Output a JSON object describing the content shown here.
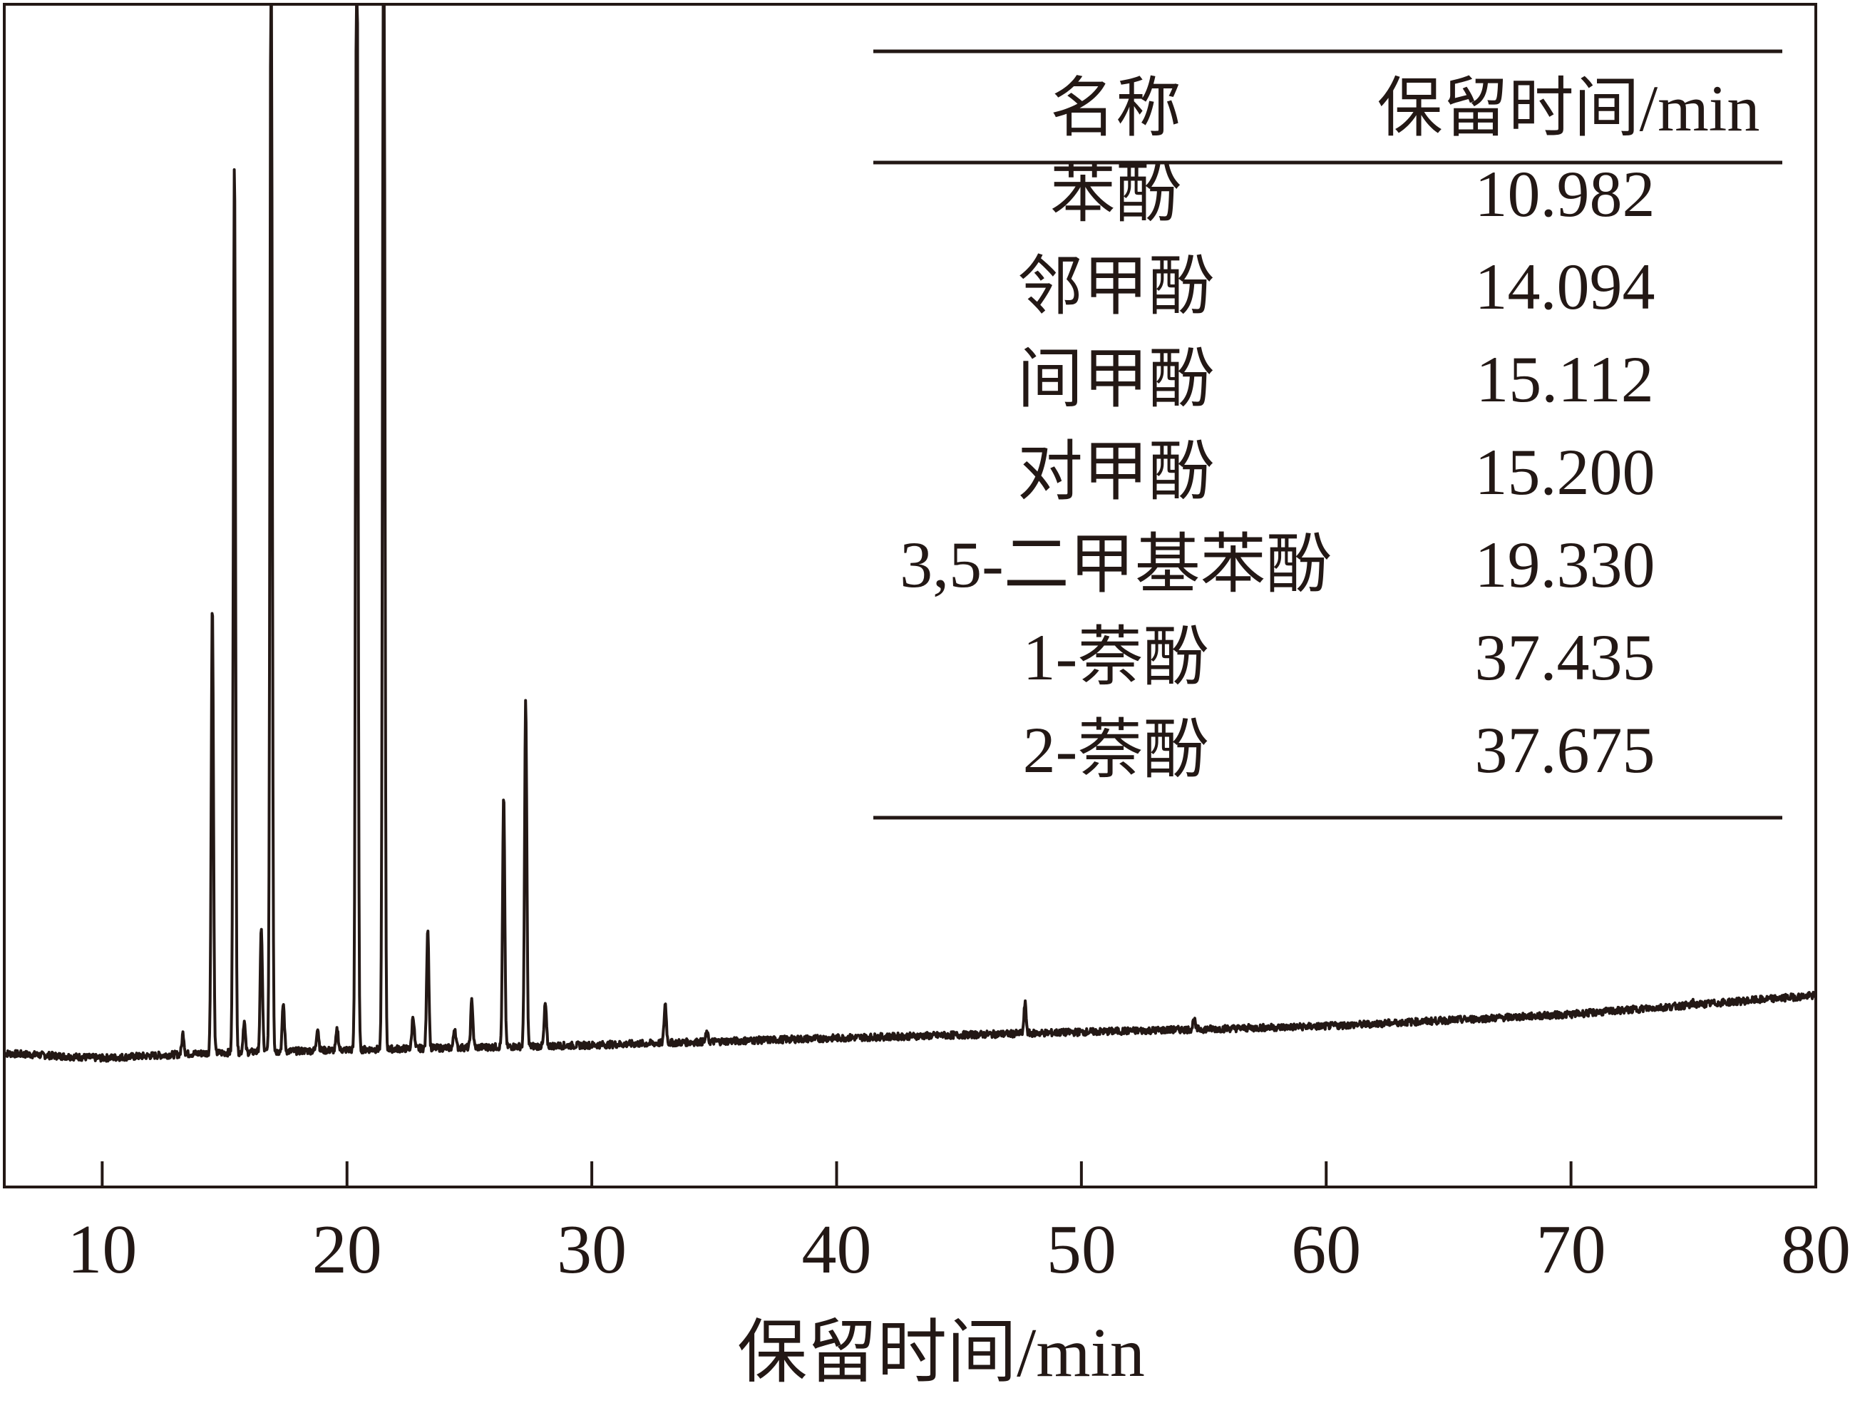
{
  "chart_data": {
    "type": "line",
    "xlabel": "保留时间/min",
    "ylabel": "",
    "xlim": [
      6,
      80
    ],
    "ylim": [
      0,
      100
    ],
    "grid": false,
    "x_ticks": [
      10,
      20,
      30,
      40,
      50,
      60,
      70,
      80
    ],
    "x_tick_labels": [
      "10",
      "20",
      "30",
      "40",
      "50",
      "60",
      "70",
      "80"
    ],
    "baseline": [
      {
        "x": 6,
        "y": 11.3
      },
      {
        "x": 10,
        "y": 10.9
      },
      {
        "x": 14,
        "y": 11.3
      },
      {
        "x": 20,
        "y": 11.6
      },
      {
        "x": 30,
        "y": 12.0
      },
      {
        "x": 40,
        "y": 12.6
      },
      {
        "x": 50,
        "y": 13.1
      },
      {
        "x": 60,
        "y": 13.6
      },
      {
        "x": 70,
        "y": 14.6
      },
      {
        "x": 80,
        "y": 16.2
      }
    ],
    "peaks": [
      {
        "x": 13.3,
        "y": 13.0
      },
      {
        "x": 14.5,
        "y": 49.5
      },
      {
        "x": 15.4,
        "y": 87.0
      },
      {
        "x": 15.8,
        "y": 14.0
      },
      {
        "x": 16.5,
        "y": 22.0
      },
      {
        "x": 16.9,
        "y": 110.0
      },
      {
        "x": 17.4,
        "y": 15.5
      },
      {
        "x": 18.8,
        "y": 13.5
      },
      {
        "x": 19.6,
        "y": 13.3
      },
      {
        "x": 20.4,
        "y": 120.0
      },
      {
        "x": 21.5,
        "y": 120.0
      },
      {
        "x": 22.7,
        "y": 14.5
      },
      {
        "x": 23.3,
        "y": 22.0
      },
      {
        "x": 24.4,
        "y": 13.5
      },
      {
        "x": 25.1,
        "y": 15.8
      },
      {
        "x": 26.4,
        "y": 33.0
      },
      {
        "x": 27.3,
        "y": 41.0
      },
      {
        "x": 28.1,
        "y": 15.5
      },
      {
        "x": 33.0,
        "y": 15.5
      },
      {
        "x": 34.7,
        "y": 13.0
      },
      {
        "x": 47.7,
        "y": 15.5
      },
      {
        "x": 54.6,
        "y": 14.2
      },
      {
        "x": 75.0,
        "y": 15.6
      }
    ],
    "annotations": {
      "table": {
        "headers": [
          "名称",
          "保留时间/min"
        ],
        "rows": [
          [
            "苯酚",
            "10.982"
          ],
          [
            "邻甲酚",
            "14.094"
          ],
          [
            "间甲酚",
            "15.112"
          ],
          [
            "对甲酚",
            "15.200"
          ],
          [
            "3,5-二甲基苯酚",
            "19.330"
          ],
          [
            "1-萘酚",
            "37.435"
          ],
          [
            "2-萘酚",
            "37.675"
          ]
        ]
      }
    }
  },
  "colors": {
    "line": "#231815",
    "axis": "#231815",
    "text": "#231815",
    "background": "#ffffff"
  }
}
